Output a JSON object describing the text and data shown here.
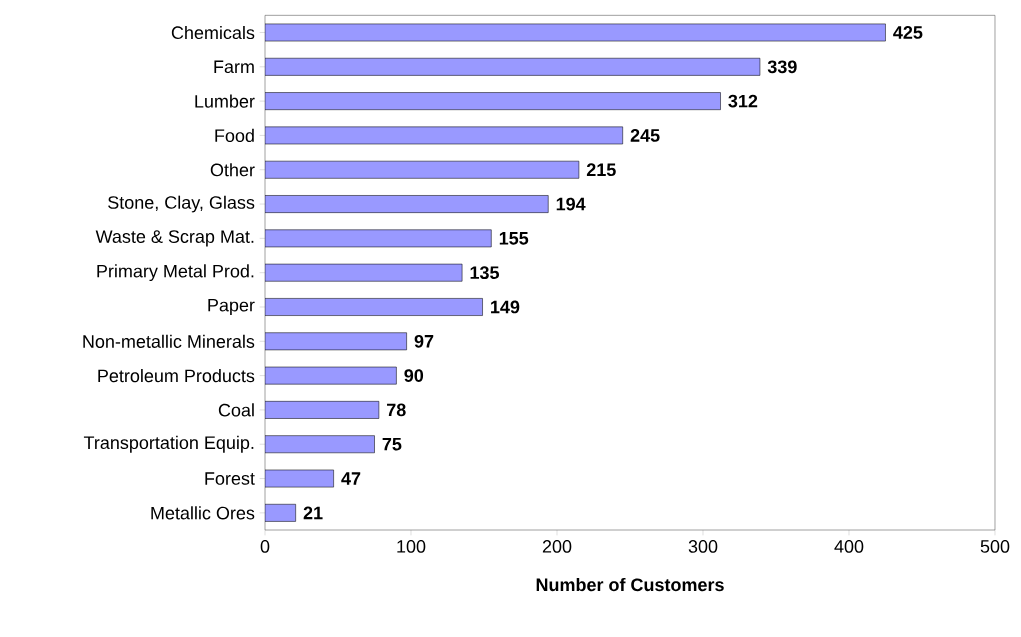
{
  "chart_data": {
    "type": "bar",
    "orientation": "horizontal",
    "xlabel": "Number of Customers",
    "categories": [
      "Chemicals",
      "Farm",
      "Lumber",
      "Food",
      "Other",
      "Stone, Clay, Glass",
      "Waste & Scrap Mat.",
      "Primary Metal Prod.",
      "Paper",
      "Non-metallic Minerals",
      "Petroleum Products",
      "Coal",
      "Transportation Equip.",
      "Forest",
      "Metallic Ores"
    ],
    "values": [
      425,
      339,
      312,
      245,
      215,
      194,
      155,
      135,
      149,
      97,
      90,
      78,
      75,
      47,
      21
    ],
    "color": "#9999ff",
    "xlim": [
      0,
      500
    ],
    "xticks": [
      0,
      100,
      200,
      300,
      400,
      500
    ],
    "data_labels": true
  }
}
